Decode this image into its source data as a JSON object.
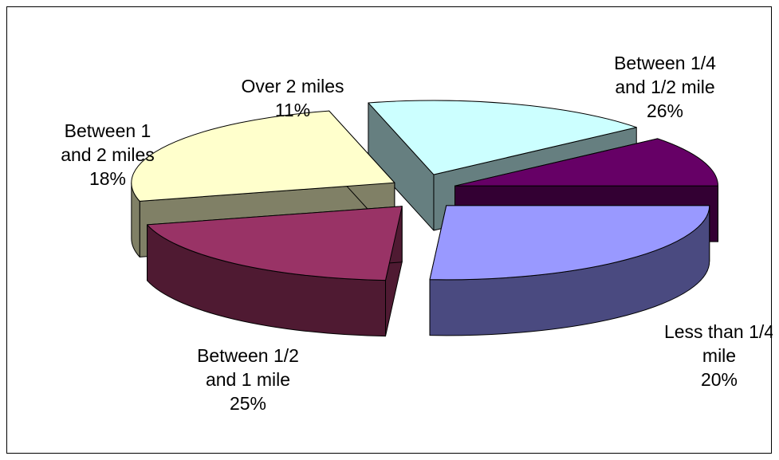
{
  "chart_data": {
    "type": "pie",
    "title": "",
    "legend": "none",
    "style": "3d-exploded",
    "slices": [
      {
        "label_lines": [
          "Between 1/4",
          "and 1/2 mile"
        ],
        "percent_label": "26%",
        "value": 26,
        "color": "#9999ff",
        "side": "#4a4a80"
      },
      {
        "label_lines": [
          "Less than 1/4",
          "mile"
        ],
        "percent_label": "20%",
        "value": 20,
        "color": "#993366",
        "side": "#4f1a32"
      },
      {
        "label_lines": [
          "Between 1/2",
          "and 1 mile"
        ],
        "percent_label": "25%",
        "value": 25,
        "color": "#ffffcc",
        "side": "#808066"
      },
      {
        "label_lines": [
          "Between 1",
          "and 2 miles"
        ],
        "percent_label": "18%",
        "value": 18,
        "color": "#ccffff",
        "side": "#667f80"
      },
      {
        "label_lines": [
          "Over 2 miles"
        ],
        "percent_label": "11%",
        "value": 11,
        "color": "#660066",
        "side": "#330033"
      }
    ]
  }
}
